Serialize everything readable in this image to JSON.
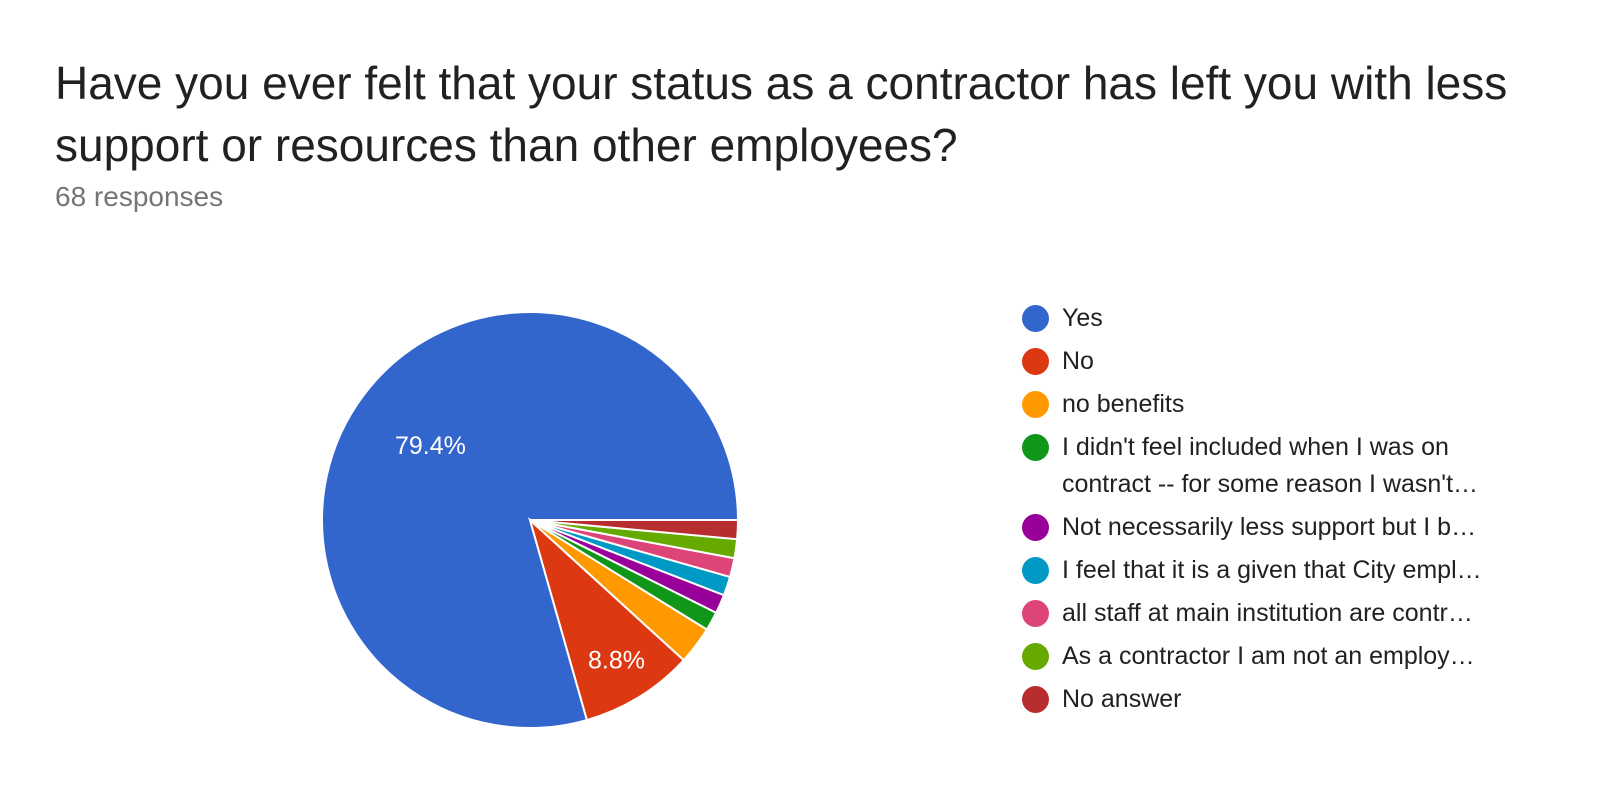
{
  "chart_data": {
    "type": "pie",
    "title": "Have you ever felt that your status as a contractor has left you with less support or resources than other employees?",
    "subtitle": "68 responses",
    "total_responses": 68,
    "slices": [
      {
        "label": "Yes",
        "count": 54,
        "percent": 79.4,
        "percent_label": "79.4%",
        "color": "#3366cc"
      },
      {
        "label": "No",
        "count": 6,
        "percent": 8.8,
        "percent_label": "8.8%",
        "color": "#dc3912"
      },
      {
        "label": "no benefits",
        "count": 2,
        "percent": 2.9,
        "color": "#ff9900"
      },
      {
        "label": "I didn't feel included when I was on contract -- for some reason I wasn't…",
        "count": 1,
        "percent": 1.5,
        "color": "#109618"
      },
      {
        "label": "Not necessarily less support but I b…",
        "count": 1,
        "percent": 1.5,
        "color": "#990099"
      },
      {
        "label": "I feel that it is a given that City empl…",
        "count": 1,
        "percent": 1.5,
        "color": "#0099c6"
      },
      {
        "label": "all staff at main institution are contr…",
        "count": 1,
        "percent": 1.5,
        "color": "#dd4477"
      },
      {
        "label": "As a contractor I am not an employ…",
        "count": 1,
        "percent": 1.5,
        "color": "#66aa00"
      },
      {
        "label": "No answer",
        "count": 1,
        "percent": 1.5,
        "color": "#b82e2e"
      }
    ],
    "legend_position": "right"
  }
}
